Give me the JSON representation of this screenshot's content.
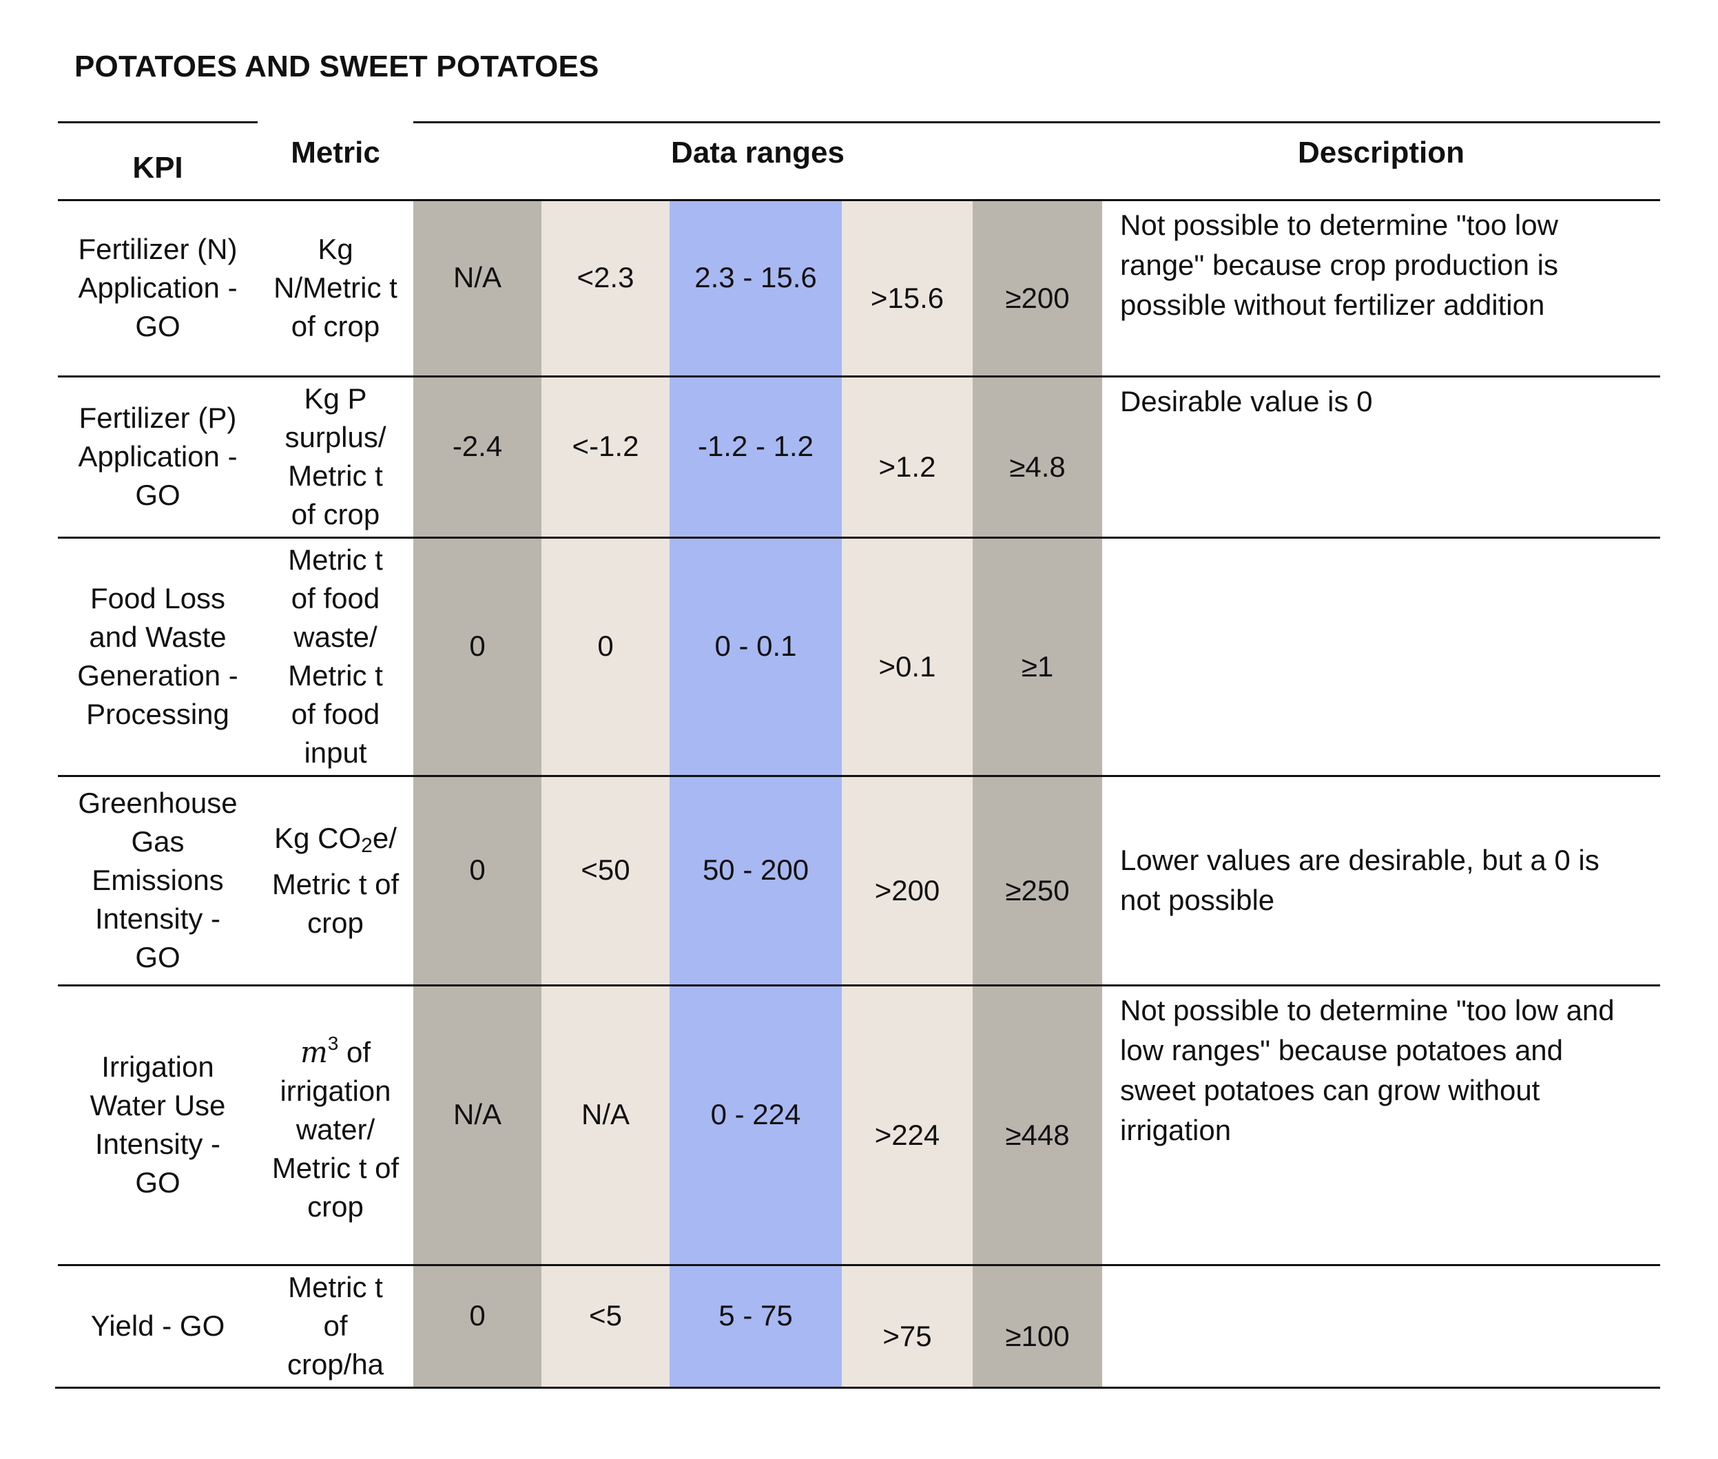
{
  "title": "POTATOES AND SWEET POTATOES",
  "headers": {
    "kpi": "KPI",
    "metric": "Metric",
    "data_ranges": "Data ranges",
    "description": "Description"
  },
  "colors": {
    "too_low": "#bab6ae",
    "low": "#ece5de",
    "target": "#a8b8f2",
    "high": "#ece5de",
    "too_high": "#bab6ae"
  },
  "rows": [
    {
      "kpi": "Fertilizer (N) Application - GO",
      "metric": "Kg N/Metric t of crop",
      "ranges": [
        "N/A",
        "<2.3",
        "2.3 - 15.6",
        ">15.6",
        "≥200"
      ],
      "description": "Not possible to determine \"too low range\" because crop production is possible without fertilizer addition"
    },
    {
      "kpi": "Fertilizer (P) Application - GO",
      "metric": "Kg P surplus/ Metric t of crop",
      "ranges": [
        "-2.4",
        "<-1.2",
        "-1.2 - 1.2",
        ">1.2",
        "≥4.8"
      ],
      "description": "Desirable value is 0"
    },
    {
      "kpi": "Food Loss and Waste Generation - Processing",
      "metric": "Metric t of food waste/ Metric t of food input",
      "ranges": [
        "0",
        "0",
        "0 - 0.1",
        ">0.1",
        "≥1"
      ],
      "description": ""
    },
    {
      "kpi": "Greenhouse Gas Emissions Intensity - GO",
      "metric_prefix": "Kg CO",
      "metric_sub": "2",
      "metric_suffix": "e/ Metric t of crop",
      "ranges": [
        "0",
        "<50",
        "50 - 200",
        ">200",
        "≥250"
      ],
      "description": "Lower values are desirable, but a 0 is not possible"
    },
    {
      "kpi": "Irrigation Water Use Intensity - GO",
      "metric_var": "m",
      "metric_sup": "3",
      "metric_suffix": " of irrigation water/ Metric t of crop",
      "ranges": [
        "N/A",
        "N/A",
        "0 - 224",
        ">224",
        "≥448"
      ],
      "description": "Not possible to determine \"too low and low ranges\" because potatoes and sweet potatoes can grow without irrigation"
    },
    {
      "kpi": "Yield - GO",
      "metric": "Metric t of crop/ha",
      "ranges": [
        "0",
        "<5",
        "5 - 75",
        ">75",
        "≥100"
      ],
      "description": ""
    }
  ]
}
